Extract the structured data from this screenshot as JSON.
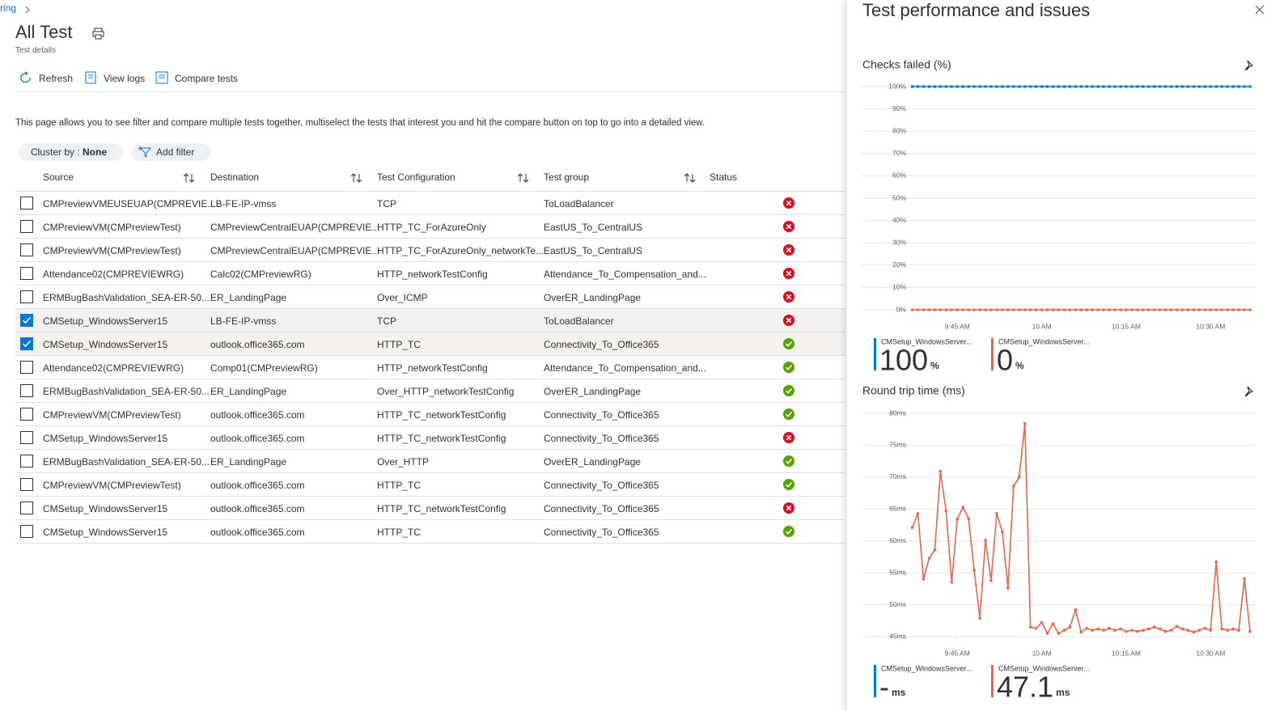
{
  "breadcrumb": "ring",
  "header": {
    "title": "All Test",
    "subtitle": "Test details"
  },
  "toolbar": [
    "Refresh",
    "View logs",
    "Compare tests"
  ],
  "description": "This page allows you to see filter and compare multiple tests together, multiselect the tests that interest you and hit the compare button on top to go into a detailed view.",
  "filters": {
    "cluster_label": "Cluster by : ",
    "cluster_value": "None",
    "add": "Add filter"
  },
  "table": {
    "columns": [
      "Source",
      "Destination",
      "Test Configuration",
      "Test group",
      "Status"
    ],
    "rows": [
      {
        "cells": [
          "CMPreviewVMEUSEUAP(CMPREVIE...",
          "LB-FE-IP-vmss",
          "TCP",
          "ToLoadBalancer"
        ],
        "status": "fail",
        "selected": false
      },
      {
        "cells": [
          "CMPreviewVM(CMPreviewTest)",
          "CMPreviewCentralEUAP(CMPREVIE...",
          "HTTP_TC_ForAzureOnly",
          "EastUS_To_CentralUS"
        ],
        "status": "fail",
        "selected": false
      },
      {
        "cells": [
          "CMPreviewVM(CMPreviewTest)",
          "CMPreviewCentralEUAP(CMPREVIE...",
          "HTTP_TC_ForAzureOnly_networkTe...",
          "EastUS_To_CentralUS"
        ],
        "status": "fail",
        "selected": false
      },
      {
        "cells": [
          "Attendance02(CMPREVIEWRG)",
          "Calc02(CMPreviewRG)",
          "HTTP_networkTestConfig",
          "Attendance_To_Compensation_and..."
        ],
        "status": "fail",
        "selected": false
      },
      {
        "cells": [
          "ERMBugBashValidation_SEA-ER-50...",
          "ER_LandingPage",
          "Over_ICMP",
          "OverER_LandingPage"
        ],
        "status": "fail",
        "selected": false
      },
      {
        "cells": [
          "CMSetup_WindowsServer15",
          "LB-FE-IP-vmss",
          "TCP",
          "ToLoadBalancer"
        ],
        "status": "fail",
        "selected": true
      },
      {
        "cells": [
          "CMSetup_WindowsServer15",
          "outlook.office365.com",
          "HTTP_TC",
          "Connectivity_To_Office365"
        ],
        "status": "pass",
        "selected": true
      },
      {
        "cells": [
          "Attendance02(CMPREVIEWRG)",
          "Comp01(CMPreviewRG)",
          "HTTP_networkTestConfig",
          "Attendance_To_Compensation_and..."
        ],
        "status": "pass",
        "selected": false
      },
      {
        "cells": [
          "ERMBugBashValidation_SEA-ER-50...",
          "ER_LandingPage",
          "Over_HTTP_networkTestConfig",
          "OverER_LandingPage"
        ],
        "status": "pass",
        "selected": false
      },
      {
        "cells": [
          "CMPreviewVM(CMPreviewTest)",
          "outlook.office365.com",
          "HTTP_TC_networkTestConfig",
          "Connectivity_To_Office365"
        ],
        "status": "pass",
        "selected": false
      },
      {
        "cells": [
          "CMSetup_WindowsServer15",
          "outlook.office365.com",
          "HTTP_TC_networkTestConfig",
          "Connectivity_To_Office365"
        ],
        "status": "fail",
        "selected": false
      },
      {
        "cells": [
          "ERMBugBashValidation_SEA-ER-50...",
          "ER_LandingPage",
          "Over_HTTP",
          "OverER_LandingPage"
        ],
        "status": "pass",
        "selected": false
      },
      {
        "cells": [
          "CMPreviewVM(CMPreviewTest)",
          "outlook.office365.com",
          "HTTP_TC",
          "Connectivity_To_Office365"
        ],
        "status": "pass",
        "selected": false
      },
      {
        "cells": [
          "CMSetup_WindowsServer15",
          "outlook.office365.com",
          "HTTP_TC_networkTestConfig",
          "Connectivity_To_Office365"
        ],
        "status": "fail",
        "selected": false
      },
      {
        "cells": [
          "CMSetup_WindowsServer15",
          "outlook.office365.com",
          "HTTP_TC",
          "Connectivity_To_Office365"
        ],
        "status": "pass",
        "selected": false
      }
    ]
  },
  "panel": {
    "title": "Test performance and issues"
  },
  "chart_data": [
    {
      "type": "line",
      "title": "Checks failed (%)",
      "x": [
        577,
        578,
        579,
        580,
        581,
        582,
        583,
        584,
        585,
        586,
        587,
        588,
        589,
        590,
        591,
        592,
        593,
        594,
        595,
        596,
        597,
        598,
        599,
        600,
        601,
        602,
        603,
        604,
        605,
        606,
        607,
        608,
        609,
        610,
        611,
        612,
        613,
        614,
        615,
        616,
        617,
        618,
        619,
        620,
        621,
        622,
        623,
        624,
        625,
        626,
        627,
        628,
        629,
        630,
        631,
        632,
        633,
        634,
        635,
        636,
        637
      ],
      "xlim": [
        568,
        638
      ],
      "xticks": [
        {
          "value": 585,
          "label": "9:45 AM"
        },
        {
          "value": 600,
          "label": "10 AM"
        },
        {
          "value": 615,
          "label": "10:15 AM"
        },
        {
          "value": 630,
          "label": "10:30 AM"
        }
      ],
      "ylim": [
        0,
        100
      ],
      "yticks": [
        {
          "value": 0,
          "label": "0%"
        },
        {
          "value": 10,
          "label": "10%"
        },
        {
          "value": 20,
          "label": "20%"
        },
        {
          "value": 30,
          "label": "30%"
        },
        {
          "value": 40,
          "label": "40%"
        },
        {
          "value": 50,
          "label": "50%"
        },
        {
          "value": 60,
          "label": "60%"
        },
        {
          "value": 70,
          "label": "70%"
        },
        {
          "value": 80,
          "label": "80%"
        },
        {
          "value": 90,
          "label": "90%"
        },
        {
          "value": 100,
          "label": "100%"
        }
      ],
      "grid": true,
      "series": [
        {
          "name": "CMSetup_WindowsServer...",
          "color": "#0078d4",
          "summary_value": 100,
          "summary_unit": "%",
          "values": [
            100,
            100,
            100,
            100,
            100,
            100,
            100,
            100,
            100,
            100,
            100,
            100,
            100,
            100,
            100,
            100,
            100,
            100,
            100,
            100,
            100,
            100,
            100,
            100,
            100,
            100,
            100,
            100,
            100,
            100,
            100,
            100,
            100,
            100,
            100,
            100,
            100,
            100,
            100,
            100,
            100,
            100,
            100,
            100,
            100,
            100,
            100,
            100,
            100,
            100,
            100,
            100,
            100,
            100,
            100,
            100,
            100,
            100,
            100,
            100,
            100
          ]
        },
        {
          "name": "CMSetup_WindowsServer...",
          "color": "#e8644a",
          "summary_value": 0,
          "summary_unit": "%",
          "values": [
            0,
            0,
            0,
            0,
            0,
            0,
            0,
            0,
            0,
            0,
            0,
            0,
            0,
            0,
            0,
            0,
            0,
            0,
            0,
            0,
            0,
            0,
            0,
            0,
            0,
            0,
            0,
            0,
            0,
            0,
            0,
            0,
            0,
            0,
            0,
            0,
            0,
            0,
            0,
            0,
            0,
            0,
            0,
            0,
            0,
            0,
            0,
            0,
            0,
            0,
            0,
            0,
            0,
            0,
            0,
            0,
            0,
            0,
            0,
            0,
            0
          ]
        }
      ]
    },
    {
      "type": "line",
      "title": "Round trip time (ms)",
      "x": [
        577,
        578,
        579,
        580,
        581,
        582,
        583,
        584,
        585,
        586,
        587,
        588,
        589,
        590,
        591,
        592,
        593,
        594,
        595,
        596,
        597,
        598,
        599,
        600,
        601,
        602,
        603,
        604,
        605,
        606,
        607,
        608,
        609,
        610,
        611,
        612,
        613,
        614,
        615,
        616,
        617,
        618,
        619,
        620,
        621,
        622,
        623,
        624,
        625,
        626,
        627,
        628,
        629,
        630,
        631,
        632,
        633,
        634,
        635,
        636,
        637
      ],
      "xlim": [
        568,
        638
      ],
      "xticks": [
        {
          "value": 585,
          "label": "9:45 AM"
        },
        {
          "value": 600,
          "label": "10 AM"
        },
        {
          "value": 615,
          "label": "10:15 AM"
        },
        {
          "value": 630,
          "label": "10:30 AM"
        }
      ],
      "ylim": [
        45,
        80
      ],
      "yticks": [
        {
          "value": 45,
          "label": "45ms"
        },
        {
          "value": 50,
          "label": "50ms"
        },
        {
          "value": 55,
          "label": "55ms"
        },
        {
          "value": 60,
          "label": "60ms"
        },
        {
          "value": 65,
          "label": "65ms"
        },
        {
          "value": 70,
          "label": "70ms"
        },
        {
          "value": 75,
          "label": "75ms"
        },
        {
          "value": 80,
          "label": "80ms"
        }
      ],
      "grid": true,
      "series": [
        {
          "name": "CMSetup_WindowsServer...",
          "color": "#0078d4",
          "summary_value": "-",
          "summary_unit": "ms",
          "values": [
            null,
            null,
            null,
            null,
            null,
            null,
            null,
            null,
            null,
            null,
            null,
            null,
            null,
            null,
            null,
            null,
            null,
            null,
            null,
            null,
            null,
            null,
            null,
            null,
            null,
            null,
            null,
            null,
            null,
            null,
            null,
            null,
            null,
            null,
            null,
            null,
            null,
            null,
            null,
            null,
            null,
            null,
            null,
            null,
            null,
            null,
            null,
            null,
            null,
            null,
            null,
            null,
            null,
            null,
            null,
            null,
            null,
            null,
            null,
            null,
            null
          ]
        },
        {
          "name": "CMSetup_WindowsServer...",
          "color": "#e8644a",
          "summary_value": 47.1,
          "summary_unit": "ms",
          "values": [
            62.1,
            64.3,
            54.0,
            57.3,
            58.6,
            70.9,
            64.7,
            53.5,
            63.4,
            65.3,
            63.5,
            55.4,
            47.9,
            60.1,
            53.8,
            64.3,
            61.4,
            52.6,
            68.6,
            70.0,
            78.4,
            46.5,
            46.3,
            47.2,
            45.5,
            47.0,
            45.5,
            46.0,
            46.5,
            49.2,
            45.7,
            46.3,
            46.0,
            46.2,
            46.0,
            46.3,
            46.0,
            46.2,
            45.8,
            46.0,
            45.8,
            46.0,
            46.2,
            46.5,
            46.2,
            45.8,
            46.0,
            46.6,
            46.2,
            46.0,
            45.7,
            46.0,
            46.3,
            46.0,
            56.7,
            46.2,
            46.0,
            46.2,
            46.0,
            54.1,
            45.8
          ]
        }
      ]
    }
  ]
}
